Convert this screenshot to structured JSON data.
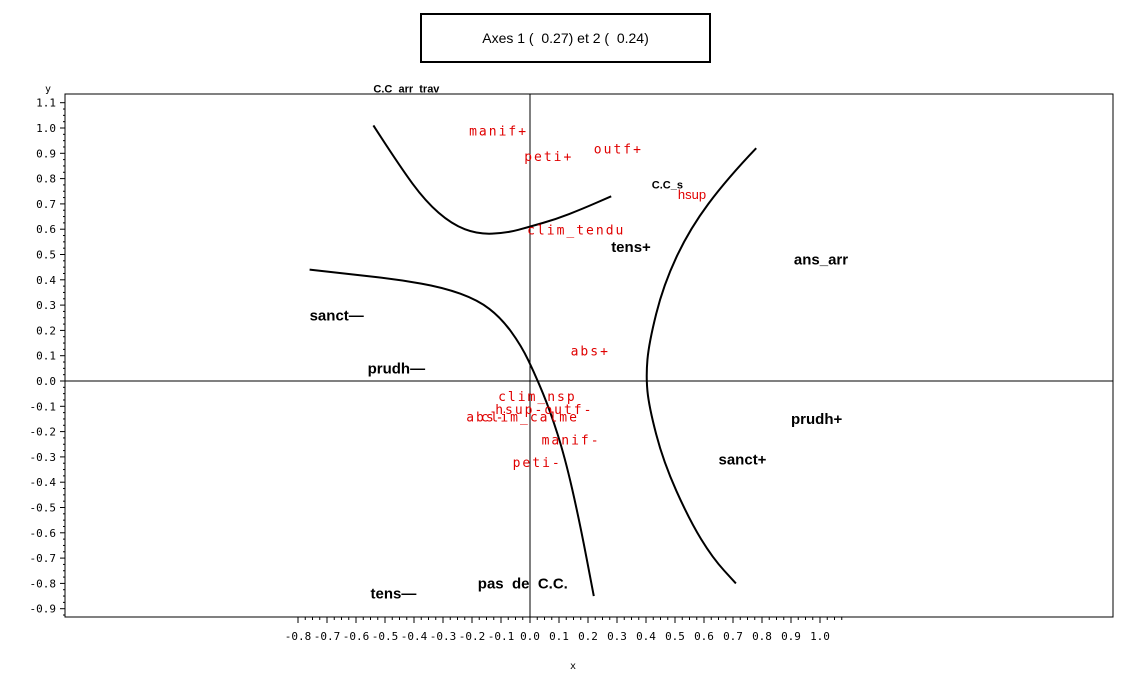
{
  "chart_data": {
    "type": "scatter",
    "title": "Axes 1 (  0.27) et 2 (  0.24)",
    "xlabel": "x",
    "ylabel": "y",
    "xlim": [
      -0.82,
      1.02
    ],
    "ylim": [
      -0.93,
      1.15
    ],
    "grid": false,
    "x_ticks": [
      "-0.8",
      "-0.7",
      "-0.6",
      "-0.5",
      "-0.4",
      "-0.3",
      "-0.2",
      "-0.1",
      "0.0",
      "0.1",
      "0.2",
      "0.3",
      "0.4",
      "0.5",
      "0.6",
      "0.7",
      "0.8",
      "0.9",
      "1.0"
    ],
    "y_ticks": [
      "1.1",
      "1.0",
      "0.9",
      "0.8",
      "0.7",
      "0.6",
      "0.5",
      "0.4",
      "0.3",
      "0.2",
      "0.1",
      "0.0",
      "-0.1",
      "-0.2",
      "-0.3",
      "-0.4",
      "-0.5",
      "-0.6",
      "-0.7",
      "-0.8",
      "-0.9"
    ],
    "bold_labels": [
      {
        "text": "C.C_arr_trav",
        "x": -0.54,
        "y": 1.14
      },
      {
        "text": "C.C_s",
        "x": 0.42,
        "y": 0.76
      },
      {
        "text": "tens+",
        "x": 0.28,
        "y": 0.51
      },
      {
        "text": "ans_arr",
        "x": 0.91,
        "y": 0.46
      },
      {
        "text": "sanct—",
        "x": -0.76,
        "y": 0.24
      },
      {
        "text": "prudh—",
        "x": -0.56,
        "y": 0.03
      },
      {
        "text": "prudh+",
        "x": 0.9,
        "y": -0.17
      },
      {
        "text": "sanct+",
        "x": 0.65,
        "y": -0.33
      },
      {
        "text": "pas  de  C.C.",
        "x": -0.18,
        "y": -0.82
      },
      {
        "text": "tens—",
        "x": -0.55,
        "y": -0.86
      }
    ],
    "red_labels": [
      {
        "text": "manif+",
        "x": -0.21,
        "y": 0.97
      },
      {
        "text": "peti+",
        "x": -0.02,
        "y": 0.87
      },
      {
        "text": "outf+",
        "x": 0.22,
        "y": 0.9
      },
      {
        "text": "hsup",
        "x": 0.51,
        "y": 0.72
      },
      {
        "text": "clim_tendu",
        "x": -0.01,
        "y": 0.58
      },
      {
        "text": "abs+",
        "x": 0.14,
        "y": 0.1
      },
      {
        "text": "clim_nsp",
        "x": -0.11,
        "y": -0.08
      },
      {
        "text": "hsup-outf-",
        "x": -0.12,
        "y": -0.13
      },
      {
        "text": "abs-",
        "x": -0.22,
        "y": -0.16
      },
      {
        "text": "clim_calme",
        "x": -0.17,
        "y": -0.16
      },
      {
        "text": "manif-",
        "x": 0.04,
        "y": -0.25
      },
      {
        "text": "peti-",
        "x": -0.06,
        "y": -0.34
      }
    ],
    "curves": [
      {
        "points": [
          [
            -0.54,
            1.01
          ],
          [
            -0.45,
            0.85
          ],
          [
            -0.36,
            0.71
          ],
          [
            -0.27,
            0.62
          ],
          [
            -0.18,
            0.58
          ],
          [
            -0.08,
            0.585
          ],
          [
            0.0,
            0.61
          ],
          [
            0.09,
            0.64
          ],
          [
            0.18,
            0.68
          ],
          [
            0.28,
            0.73
          ]
        ]
      },
      {
        "points": [
          [
            -0.76,
            0.44
          ],
          [
            -0.6,
            0.42
          ],
          [
            -0.45,
            0.4
          ],
          [
            -0.3,
            0.37
          ],
          [
            -0.18,
            0.32
          ],
          [
            -0.1,
            0.25
          ],
          [
            -0.03,
            0.14
          ],
          [
            0.02,
            0.02
          ],
          [
            0.07,
            -0.12
          ],
          [
            0.12,
            -0.3
          ],
          [
            0.17,
            -0.55
          ],
          [
            0.22,
            -0.85
          ]
        ]
      },
      {
        "points": [
          [
            0.78,
            0.92
          ],
          [
            0.68,
            0.8
          ],
          [
            0.55,
            0.6
          ],
          [
            0.46,
            0.38
          ],
          [
            0.41,
            0.15
          ],
          [
            0.4,
            0.02
          ],
          [
            0.41,
            -0.1
          ],
          [
            0.46,
            -0.32
          ],
          [
            0.55,
            -0.55
          ],
          [
            0.63,
            -0.7
          ],
          [
            0.71,
            -0.8
          ]
        ]
      }
    ]
  }
}
